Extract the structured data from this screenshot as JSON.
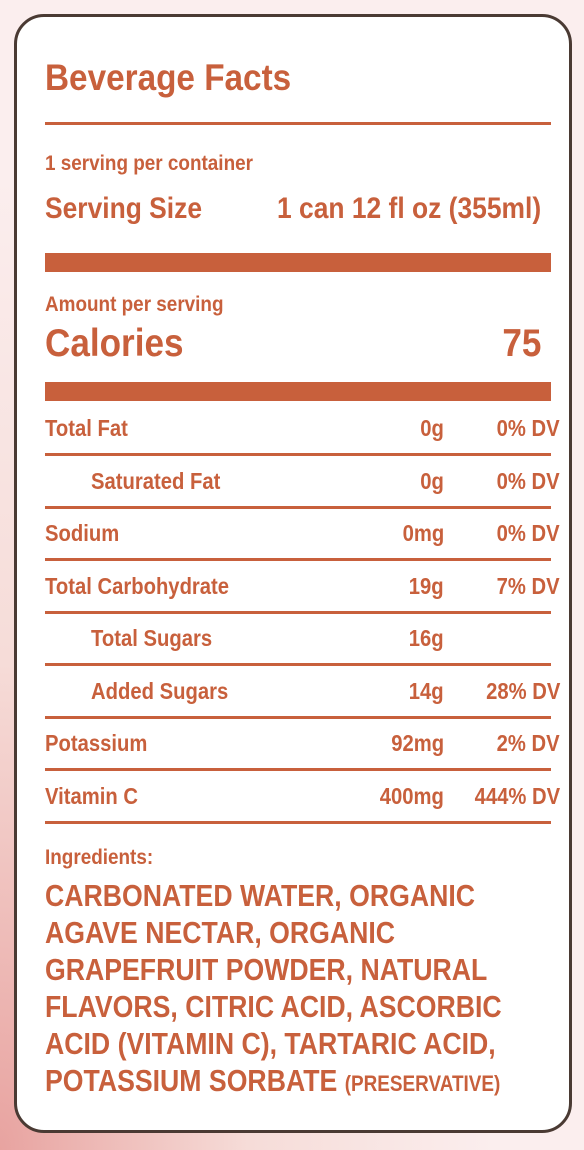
{
  "header": {
    "title": "Beverage Facts"
  },
  "servings": {
    "per_container": "1 serving per container",
    "size_label": "Serving Size",
    "size_value": "1 can 12 fl oz (355ml)"
  },
  "calories": {
    "caption": "Amount per serving",
    "label": "Calories",
    "value": "75"
  },
  "nutrients": [
    {
      "name": "Total Fat",
      "amount": "0g",
      "dv": "0% DV"
    },
    {
      "name": "Saturated Fat",
      "amount": "0g",
      "dv": "0% DV",
      "sub": true
    },
    {
      "name": "Sodium",
      "amount": "0mg",
      "dv": "0% DV"
    },
    {
      "name": "Total Carbohydrate",
      "amount": "19g",
      "dv": "7% DV"
    },
    {
      "name": "Total Sugars",
      "amount": "16g",
      "sub": true
    },
    {
      "name": "Added Sugars",
      "amount": "14g",
      "dv": "28% DV",
      "sub": true
    },
    {
      "name": "Potassium",
      "amount": "92mg",
      "dv": "2% DV"
    },
    {
      "name": "Vitamin C",
      "amount": "400mg",
      "dv": "444% DV"
    }
  ],
  "ingredients": {
    "label": "Ingredients:",
    "text": "CARBONATED WATER, ORGANIC AGAVE NECTAR, ORGANIC GRAPEFRUIT POWDER, NATURAL FLAVORS, CITRIC ACID, ASCORBIC ACID (VITAMIN C), TARTARIC ACID, POTASSIUM SORBATE",
    "note": "(PRESERVATIVE)"
  }
}
